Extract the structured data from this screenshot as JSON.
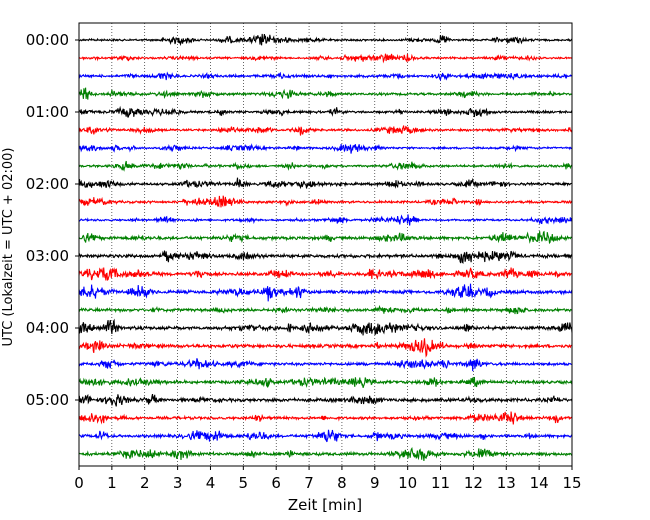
{
  "chart_data": {
    "type": "line",
    "title": "",
    "xlabel": "Zeit  [min]",
    "ylabel": "UTC (Lokalzeit = UTC + 02:00)",
    "xlim": [
      0,
      15
    ],
    "x_ticks": [
      "0",
      "1",
      "2",
      "3",
      "4",
      "5",
      "6",
      "7",
      "8",
      "9",
      "10",
      "11",
      "12",
      "13",
      "14",
      "15"
    ],
    "y_tick_labels": [
      "00:00",
      "01:00",
      "02:00",
      "03:00",
      "04:00",
      "05:00"
    ],
    "grid": "vertical dotted at each minute",
    "trace_interval_min": 15,
    "trace_count": 24,
    "trace_colors": [
      "#000000",
      "#ff0000",
      "#0000ff",
      "#008000"
    ],
    "trace_amplitude_levels": [
      0.6,
      0.55,
      0.75,
      0.7,
      0.7,
      0.65,
      0.6,
      0.65,
      0.75,
      0.7,
      0.6,
      0.9,
      1.0,
      0.9,
      1.0,
      0.85,
      1.0,
      1.0,
      0.85,
      0.95,
      1.0,
      0.8,
      0.85,
      0.95
    ]
  }
}
